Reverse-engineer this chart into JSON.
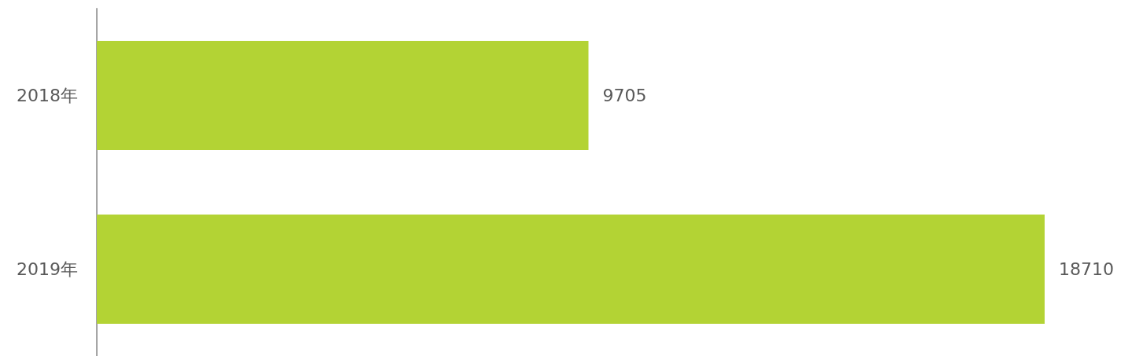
{
  "chart_data": {
    "type": "bar",
    "orientation": "horizontal",
    "categories": [
      "2018年",
      "2019年"
    ],
    "values": [
      9705,
      18710
    ],
    "color": "#b3d334",
    "data_labels": true
  }
}
